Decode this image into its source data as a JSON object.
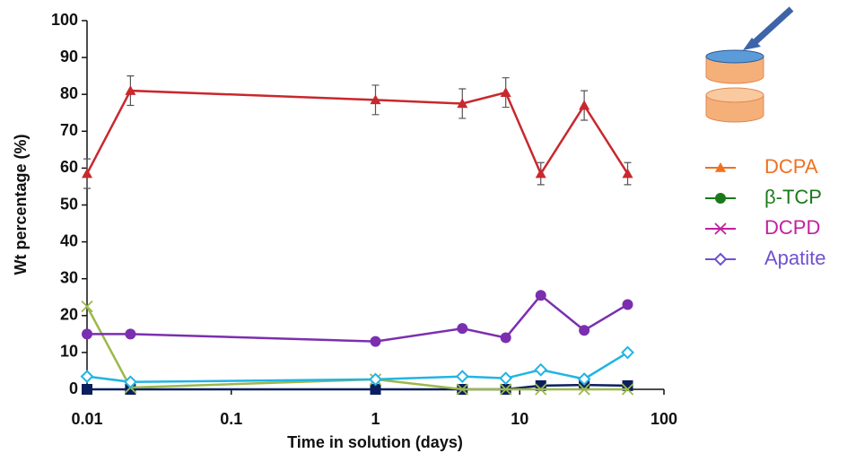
{
  "chart_data": {
    "type": "line",
    "log_x": true,
    "xlabel": "Time in solution (days)",
    "ylabel": "Wt percentage (%)",
    "xlim": [
      0.01,
      100
    ],
    "xticks": [
      0.01,
      0.1,
      1,
      10,
      100
    ],
    "ylim": [
      0,
      100
    ],
    "yticks": [
      0,
      10,
      20,
      30,
      40,
      50,
      60,
      70,
      80,
      90,
      100
    ],
    "x": [
      0.01,
      0.02,
      1,
      4,
      8,
      14,
      28,
      56
    ],
    "series": [
      {
        "color": "#0b1f5e",
        "marker": "square",
        "values": [
          0,
          0,
          0,
          0,
          0,
          1,
          1.2,
          1
        ]
      },
      {
        "color": "#9cb84c",
        "marker": "x",
        "values": [
          22.5,
          0.5,
          2.7,
          0,
          0,
          0,
          0,
          0
        ]
      },
      {
        "color": "#22b4e4",
        "marker": "diamond",
        "values": [
          3.5,
          2,
          2.7,
          3.5,
          3,
          5.3,
          2.8,
          10
        ]
      },
      {
        "color": "#7b2fb0",
        "marker": "circle",
        "values": [
          15,
          15,
          13,
          16.5,
          14,
          25.5,
          16,
          23
        ]
      },
      {
        "color": "#c8282e",
        "marker": "triangle",
        "values": [
          58.5,
          81,
          78.5,
          77.5,
          80.5,
          58.5,
          77,
          58.5
        ],
        "errors": [
          4,
          4,
          4,
          4,
          4,
          3,
          4,
          3
        ]
      }
    ],
    "legend": [
      {
        "name": "DCPA",
        "color": "#f07020",
        "marker": "triangle"
      },
      {
        "name": "β-TCP",
        "color": "#1a7a1a",
        "marker": "circle"
      },
      {
        "name": "DCPD",
        "color": "#c020a0",
        "marker": "x"
      },
      {
        "name": "Apatite",
        "color": "#7050d0",
        "marker": "diamond"
      }
    ]
  }
}
